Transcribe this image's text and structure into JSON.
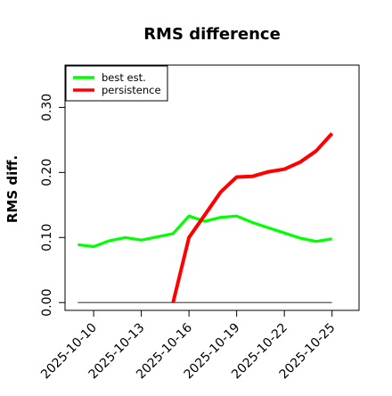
{
  "chart_data": {
    "type": "line",
    "title": "RMS difference",
    "xlabel": "",
    "ylabel": "RMS diff.",
    "x": [
      "2025-10-09",
      "2025-10-10",
      "2025-10-11",
      "2025-10-12",
      "2025-10-13",
      "2025-10-14",
      "2025-10-15",
      "2025-10-16",
      "2025-10-17",
      "2025-10-18",
      "2025-10-19",
      "2025-10-20",
      "2025-10-21",
      "2025-10-22",
      "2025-10-23",
      "2025-10-24",
      "2025-10-25"
    ],
    "x_ticks": [
      "2025-10-10",
      "2025-10-13",
      "2025-10-16",
      "2025-10-19",
      "2025-10-22",
      "2025-10-25"
    ],
    "xlim": [
      "2025-10-08.2",
      "2025-10-26.7"
    ],
    "ylim": [
      -0.012,
      0.365
    ],
    "y_ticks": [
      0.0,
      0.1,
      0.2,
      0.3
    ],
    "y_tick_labels": [
      "0.00",
      "0.10",
      "0.20",
      "0.30"
    ],
    "grid": false,
    "legend_position": "top-left",
    "series": [
      {
        "name": "best est.",
        "color": "#00ff00",
        "values": [
          0.089,
          0.086,
          0.095,
          0.1,
          0.096,
          0.101,
          0.106,
          0.133,
          0.125,
          0.131,
          0.133,
          0.123,
          0.115,
          0.107,
          0.099,
          0.094,
          0.098
        ]
      },
      {
        "name": "persistence",
        "color": "#ff0000",
        "values": [
          null,
          null,
          null,
          null,
          null,
          null,
          0.0,
          0.1,
          0.135,
          0.17,
          0.193,
          0.194,
          0.201,
          0.205,
          0.216,
          0.233,
          0.26
        ]
      }
    ],
    "reference_line": {
      "y": 0.0,
      "x_from": "2025-10-09",
      "x_to": "2025-10-25",
      "color": "#555555"
    }
  }
}
